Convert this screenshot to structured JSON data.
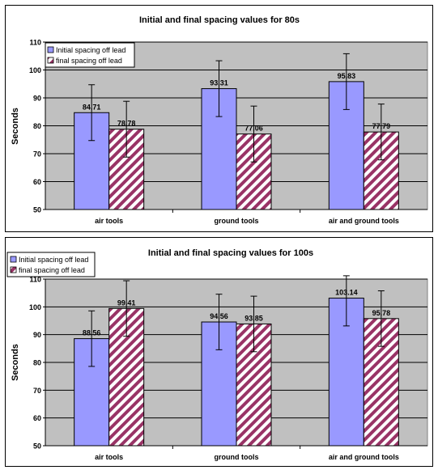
{
  "chart_data": [
    {
      "type": "bar",
      "title": "Initial and final spacing values for 80s",
      "xlabel": "",
      "ylabel": "Seconds",
      "ylim": [
        50,
        110
      ],
      "yticks": [
        "50",
        "60",
        "70",
        "80",
        "90",
        "100",
        "110"
      ],
      "categories": [
        "air tools",
        "ground tools",
        "air and ground tools"
      ],
      "grid": true,
      "legend_position": "top-left",
      "series": [
        {
          "name": "Initial spacing off lead",
          "values": [
            84.71,
            93.31,
            95.83
          ],
          "labels": [
            "84.71",
            "93.31",
            "95.83"
          ],
          "error": [
            10,
            10,
            10
          ],
          "color": "#9999ff"
        },
        {
          "name": "final spacing off lead",
          "values": [
            78.78,
            77.06,
            77.79
          ],
          "labels": [
            "78.78",
            "77.06",
            "77.79"
          ],
          "error": [
            10,
            10,
            10
          ],
          "color": "#993366",
          "pattern": "diagonal-stripes"
        }
      ]
    },
    {
      "type": "bar",
      "title": "Initial and final spacing values for 100s",
      "xlabel": "",
      "ylabel": "Seconds",
      "ylim": [
        50,
        110
      ],
      "yticks": [
        "50",
        "60",
        "70",
        "80",
        "90",
        "100",
        "110"
      ],
      "categories": [
        "air tools",
        "ground tools",
        "air and ground tools"
      ],
      "grid": true,
      "legend_position": "top-left",
      "series": [
        {
          "name": "Initial spacing off lead",
          "values": [
            88.56,
            94.56,
            103.14
          ],
          "labels": [
            "88.56",
            "94.56",
            "103.14"
          ],
          "error": [
            10,
            10,
            10
          ],
          "color": "#9999ff"
        },
        {
          "name": "final spacing off lead",
          "values": [
            99.41,
            93.85,
            95.78
          ],
          "labels": [
            "99.41",
            "93.85",
            "95.78"
          ],
          "error": [
            10,
            10,
            10
          ],
          "color": "#993366",
          "pattern": "diagonal-stripes"
        }
      ]
    }
  ]
}
